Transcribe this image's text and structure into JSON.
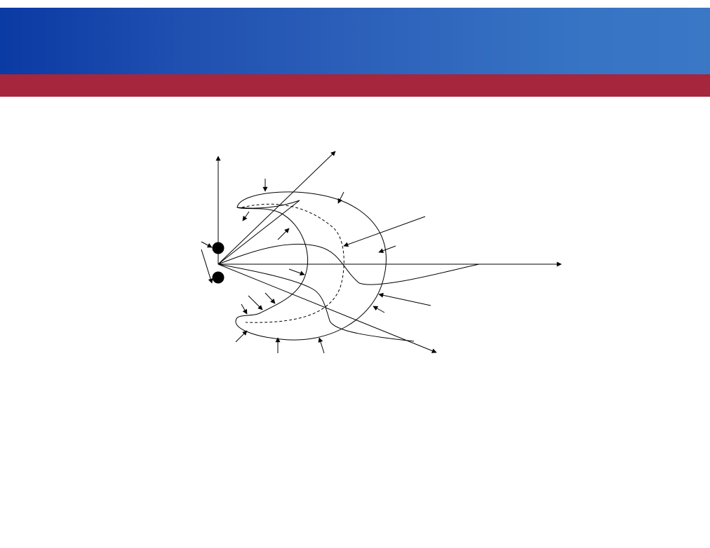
{
  "slide": {
    "header_color_start": "#0a3aa3",
    "header_color_end": "#3a78c6",
    "accent_color": "#a5263d"
  },
  "diagram": {
    "stroke_color": "#000000",
    "marker_color": "#000000"
  }
}
